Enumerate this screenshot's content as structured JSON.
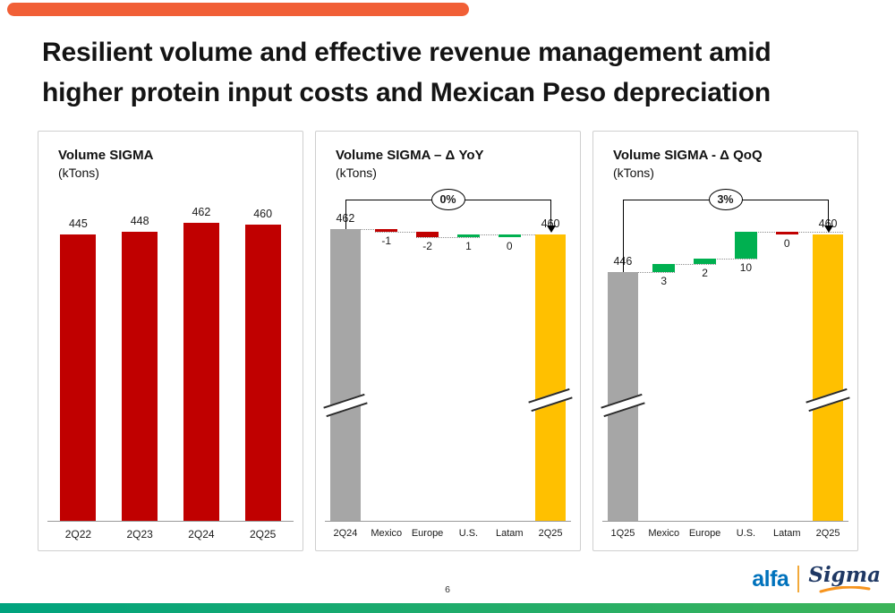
{
  "slide": {
    "title_line1": "Resilient volume and effective revenue management amid",
    "title_line2": "higher protein input costs and Mexican Peso depreciation",
    "page_number": "6",
    "colors": {
      "accent_bar": "#F15F36",
      "footer_bar_left": "#00A37E",
      "footer_bar_right": "#3DB459",
      "alfa_blue": "#0072BC",
      "sigma_navy": "#1F3864",
      "sigma_swoosh": "#F7941D",
      "logo_divider": "#F2A93B",
      "bar_red": "#C00000",
      "bar_gray": "#A6A6A6",
      "bar_yellow": "#FFC000",
      "bar_green": "#00B050"
    },
    "footer": {
      "alfa_logo": "alfa",
      "sigma_logo": "Sigma"
    }
  },
  "chart_data": [
    {
      "type": "bar",
      "title": "Volume SIGMA",
      "subtitle": "(kTons)",
      "categories": [
        "2Q22",
        "2Q23",
        "2Q24",
        "2Q25"
      ],
      "values": [
        445,
        448,
        462,
        460
      ],
      "bar_color": "#C00000",
      "ylim": [
        0,
        480
      ],
      "grid": false,
      "legend": "none"
    },
    {
      "type": "waterfall",
      "title": "Volume SIGMA – Δ YoY",
      "subtitle": "(kTons)",
      "pct_badge": "0%",
      "start": {
        "label": "2Q24",
        "value": 462,
        "color": "#A6A6A6"
      },
      "deltas": [
        {
          "label": "Mexico",
          "value": -1,
          "color": "#C00000"
        },
        {
          "label": "Europe",
          "value": -2,
          "color": "#C00000"
        },
        {
          "label": "U.S.",
          "value": 1,
          "color": "#00B050"
        },
        {
          "label": "Latam",
          "value": 0,
          "color": "#00B050"
        }
      ],
      "end": {
        "label": "2Q25",
        "value": 460,
        "color": "#FFC000"
      },
      "axis_break": true
    },
    {
      "type": "waterfall",
      "title": "Volume SIGMA - Δ QoQ",
      "subtitle": "(kTons)",
      "pct_badge": "3%",
      "start": {
        "label": "1Q25",
        "value": 446,
        "color": "#A6A6A6"
      },
      "deltas": [
        {
          "label": "Mexico",
          "value": 3,
          "color": "#00B050"
        },
        {
          "label": "Europe",
          "value": 2,
          "color": "#00B050"
        },
        {
          "label": "U.S.",
          "value": 10,
          "color": "#00B050"
        },
        {
          "label": "Latam",
          "value": 0,
          "color": "#C00000"
        }
      ],
      "end": {
        "label": "2Q25",
        "value": 460,
        "color": "#FFC000"
      },
      "axis_break": true
    }
  ]
}
